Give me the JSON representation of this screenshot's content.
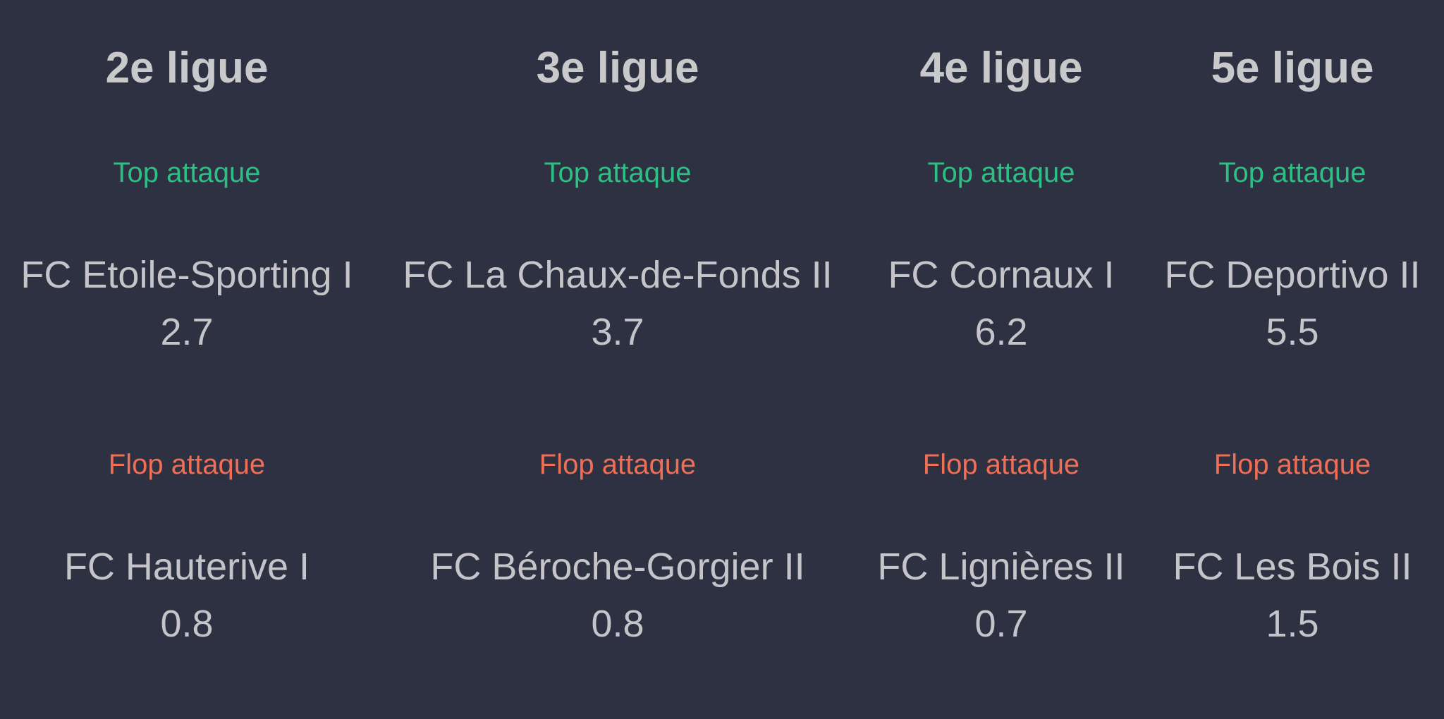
{
  "leagues": [
    {
      "title": "2e ligue",
      "top_label": "Top attaque",
      "top_team": "FC Etoile-Sporting I",
      "top_value": "2.7",
      "flop_label": "Flop attaque",
      "flop_team": "FC Hauterive I",
      "flop_value": "0.8"
    },
    {
      "title": "3e ligue",
      "top_label": "Top attaque",
      "top_team": "FC La Chaux-de-Fonds II",
      "top_value": "3.7",
      "flop_label": "Flop attaque",
      "flop_team": "FC Béroche-Gorgier II",
      "flop_value": "0.8"
    },
    {
      "title": "4e ligue",
      "top_label": "Top attaque",
      "top_team": "FC Cornaux I",
      "top_value": "6.2",
      "flop_label": "Flop attaque",
      "flop_team": "FC Lignières II",
      "flop_value": "0.7"
    },
    {
      "title": "5e ligue",
      "top_label": "Top attaque",
      "top_team": "FC Deportivo II",
      "top_value": "5.5",
      "flop_label": "Flop attaque",
      "flop_team": "FC Les Bois II",
      "flop_value": "1.5"
    }
  ],
  "colors": {
    "background": "#2e3142",
    "text": "#c5c5c9",
    "top_accent": "#2cc085",
    "flop_accent": "#ef6e55"
  }
}
